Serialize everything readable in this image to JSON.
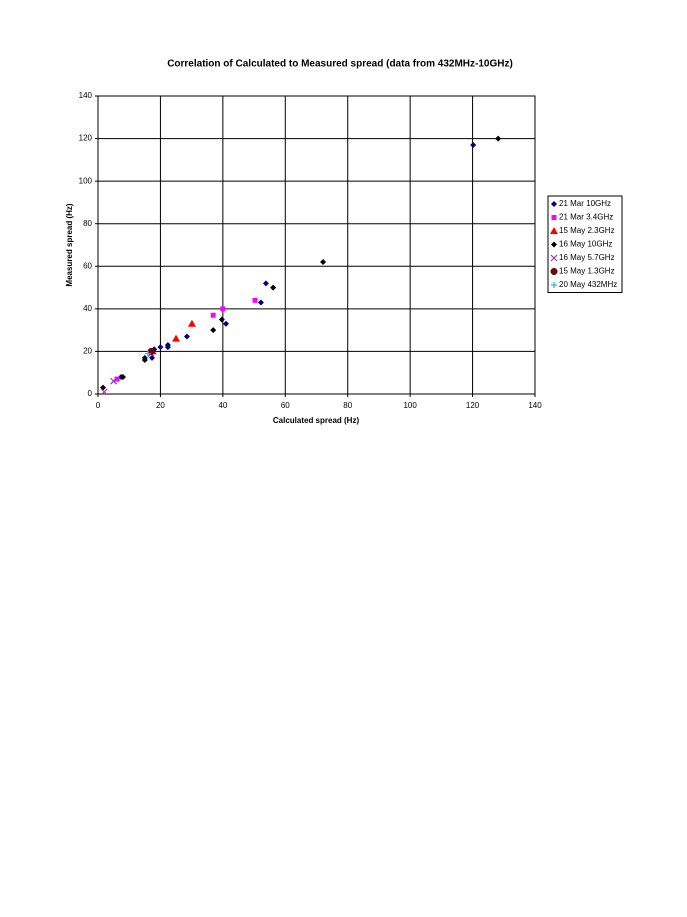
{
  "chart_data": {
    "type": "scatter",
    "title": "Correlation of Calculated to Measured spread (data from 432MHz-10GHz)",
    "x_label": "Calculated spread (Hz)",
    "y_label": "Measured spread (Hz)",
    "xlim": [
      0,
      140
    ],
    "xticks": [
      0,
      20,
      40,
      60,
      80,
      100,
      120,
      140
    ],
    "ylim": [
      0,
      140
    ],
    "yticks": [
      0,
      20,
      40,
      60,
      80,
      100,
      120,
      140
    ],
    "grid": true,
    "legend": "right",
    "series": [
      {
        "name": "21 Mar 10GHz",
        "color": "#000080",
        "marker": "diamond",
        "x": [
          120.2,
          53.8,
          52.2,
          41,
          28.5,
          22.4,
          22.4,
          20,
          17.3,
          18,
          15,
          7.4
        ],
        "values": [
          117,
          52,
          43,
          33,
          27,
          23,
          22,
          22,
          17,
          21,
          17,
          8
        ]
      },
      {
        "name": "21 Mar 3.4GHz",
        "color": "#ff00ff",
        "marker": "square",
        "x": [
          36.9,
          40,
          50.3,
          6.1
        ],
        "values": [
          37,
          40,
          44,
          7
        ]
      },
      {
        "name": "15 May 2.3GHz",
        "color": "#ff0000",
        "marker": "triangle",
        "x": [
          30.1,
          25,
          17.5
        ],
        "values": [
          33,
          26,
          20
        ]
      },
      {
        "name": "16 May 10GHz",
        "color": "#000000",
        "marker": "diamond",
        "x": [
          128.2,
          72.1,
          56.1,
          39.7,
          36.9,
          15,
          1.6,
          8
        ],
        "values": [
          120,
          62,
          50,
          35,
          30,
          16,
          3,
          8
        ]
      },
      {
        "name": "16 May 5.7GHz",
        "color": "#9933cc",
        "marker": "x",
        "x": [
          2,
          5,
          17
        ],
        "values": [
          1,
          6,
          19
        ]
      },
      {
        "name": "15 May 1.3GHz",
        "color": "#800000",
        "marker": "circle",
        "x": [
          17
        ],
        "values": [
          20
        ]
      },
      {
        "name": "20 May 432MHz",
        "color": "#33aaff",
        "marker": "plus",
        "x": [
          16
        ],
        "values": [
          19
        ]
      }
    ]
  }
}
